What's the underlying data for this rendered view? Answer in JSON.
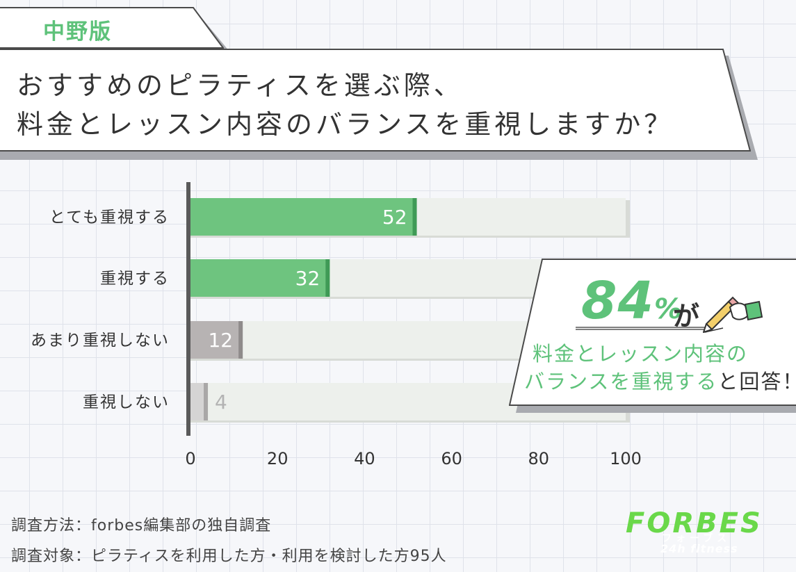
{
  "header": {
    "tag": "中野版",
    "title_lines": [
      "おすすめのピラティスを選ぶ際、",
      "料金とレッスン内容のバランスを重視しますか？"
    ]
  },
  "chart_data": {
    "type": "bar",
    "orientation": "horizontal",
    "categories": [
      "とても重視する",
      "重視する",
      "あまり重視しない",
      "重視しない"
    ],
    "values": [
      52,
      32,
      12,
      4
    ],
    "xlim": [
      0,
      100
    ],
    "xticks": [
      "0",
      "20",
      "40",
      "60",
      "80",
      "100"
    ],
    "bar_colors": [
      "#6ec47f",
      "#6ec47f",
      "#b7b3b3",
      "#d5d4d4"
    ],
    "label_colors": [
      "#ffffff",
      "#ffffff",
      "#ffffff",
      "#b3b3b3"
    ],
    "track_color": "#edf0ec",
    "grid": false
  },
  "callout": {
    "percent": "84",
    "percent_sign": "%",
    "suffix": "が",
    "line1": "料金とレッスン内容の",
    "line2_green": "バランスを重視する",
    "line2_black": "と回答！"
  },
  "notes": {
    "method": "調査方法：forbes編集部の独自調査",
    "target": "調査対象：ピラティスを利用した方・利用を検討した方95人"
  },
  "logo": {
    "main": "FORBES",
    "kana": "フォーブス",
    "sub": "24h fitness"
  },
  "colors": {
    "accent_green": "#5ec27a",
    "logo_green": "#6ad84a",
    "text_dark": "#333333"
  }
}
